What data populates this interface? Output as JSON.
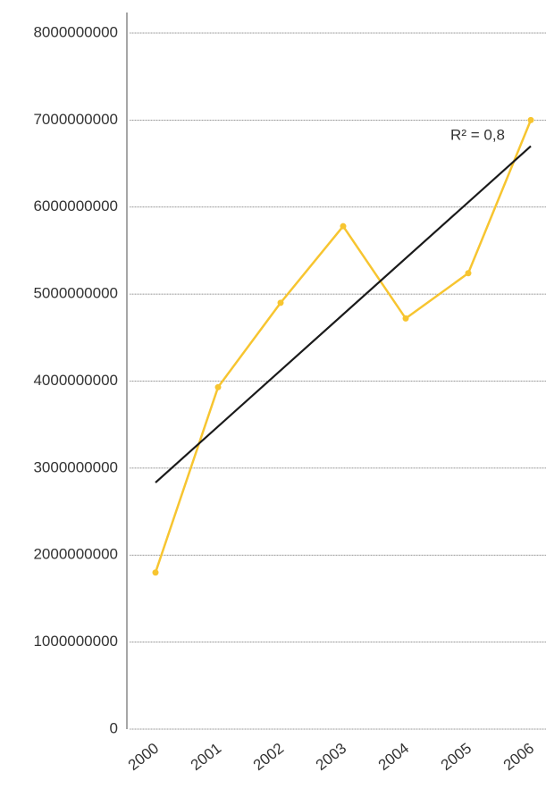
{
  "chart_data": {
    "type": "line",
    "x": [
      2000,
      2001,
      2002,
      2003,
      2004,
      2005,
      2006
    ],
    "series": [
      {
        "name": null,
        "color": "#f7c530",
        "values": [
          1800000000,
          3930000000,
          4900000000,
          5780000000,
          4720000000,
          5240000000,
          7000000000
        ]
      }
    ],
    "trendline": {
      "color": "#1a1a1a",
      "label": "R² = 0,8"
    },
    "ylim": [
      0,
      8000000000
    ],
    "yticks": [
      0,
      1000000000,
      2000000000,
      3000000000,
      4000000000,
      5000000000,
      6000000000,
      7000000000,
      8000000000
    ],
    "grid": true
  }
}
